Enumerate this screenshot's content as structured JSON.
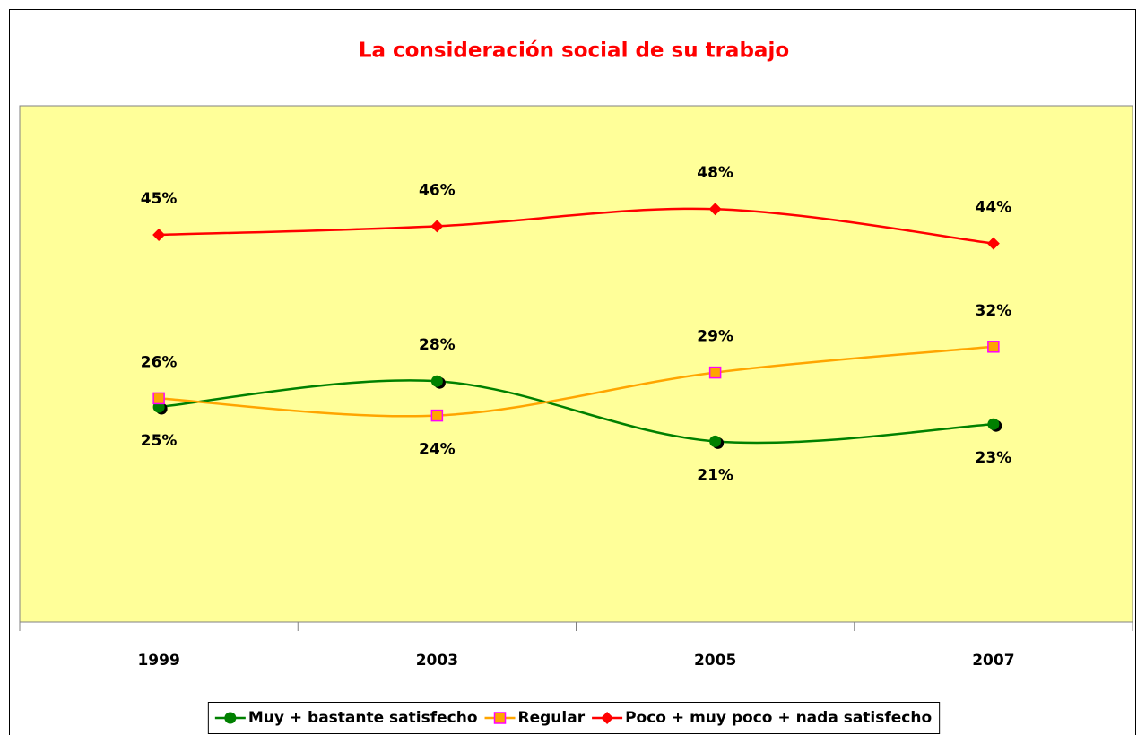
{
  "chart_data": {
    "type": "line",
    "title": "La consideración social de su trabajo",
    "categories": [
      "1999",
      "2003",
      "2005",
      "2007"
    ],
    "ylim": [
      0,
      60
    ],
    "series": [
      {
        "name": "Muy + bastante satisfecho",
        "color": "#008000",
        "marker": "circle",
        "values": [
          25,
          28,
          21,
          23
        ],
        "value_labels": [
          "25%",
          "28%",
          "21%",
          "23%"
        ]
      },
      {
        "name": "Regular",
        "color": "#FFA500",
        "marker": "square",
        "values": [
          26,
          24,
          29,
          32
        ],
        "value_labels": [
          "26%",
          "24%",
          "29%",
          "32%"
        ]
      },
      {
        "name": "Poco + muy poco + nada satisfecho",
        "color": "#FF0000",
        "marker": "diamond",
        "values": [
          45,
          46,
          48,
          44
        ],
        "value_labels": [
          "45%",
          "46%",
          "48%",
          "44%"
        ]
      }
    ],
    "legend": "bottom"
  }
}
